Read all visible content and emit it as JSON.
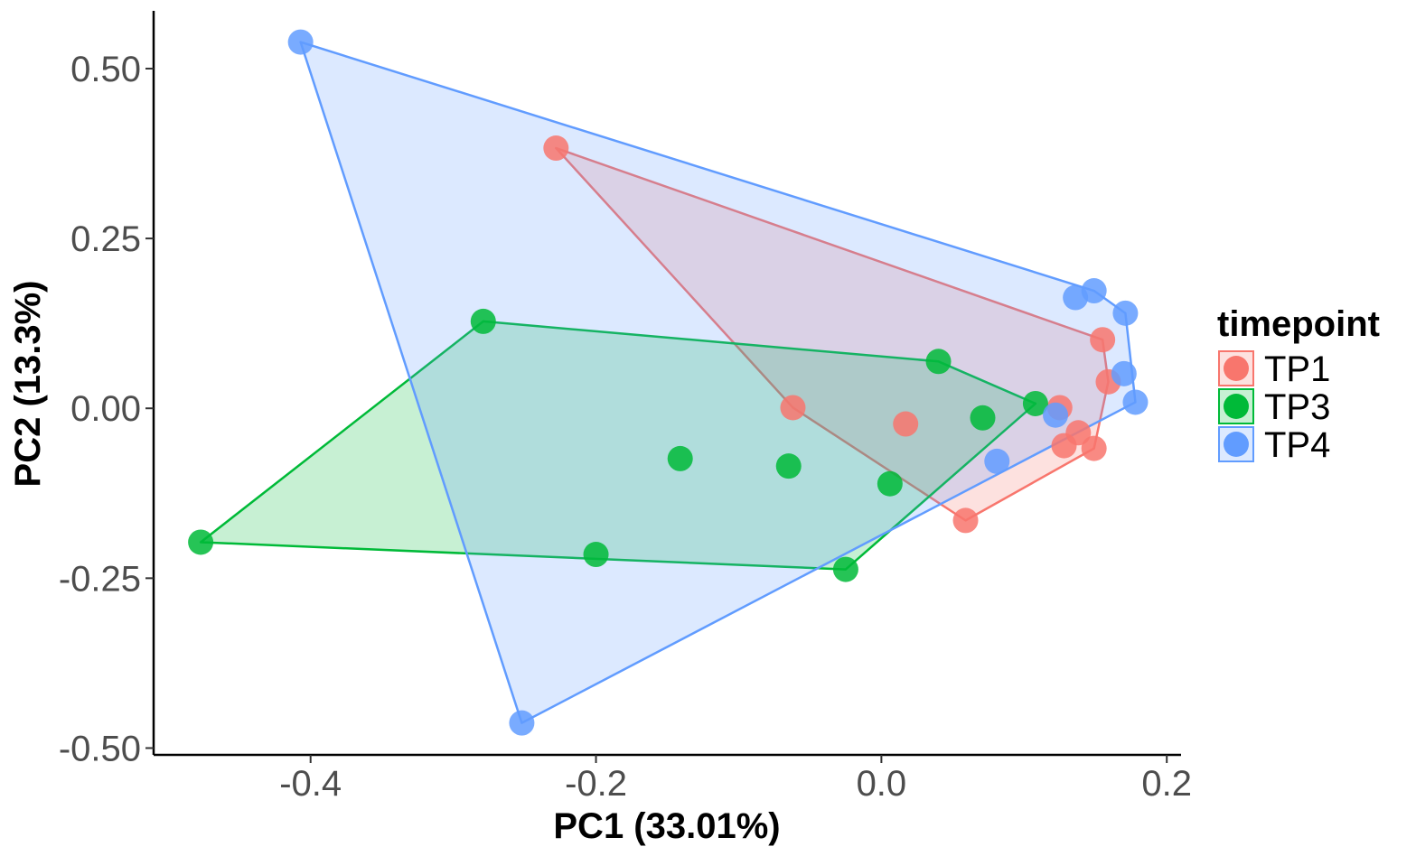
{
  "chart_data": {
    "type": "scatter",
    "xlabel": "PC1 (33.01%)",
    "ylabel": "PC2 (13.3%)",
    "xlim": [
      -0.51,
      0.21
    ],
    "ylim": [
      -0.51,
      0.585
    ],
    "x_ticks": [
      -0.4,
      -0.2,
      0.0,
      0.2
    ],
    "x_tick_labels": [
      "-0.4",
      "-0.2",
      "0.0",
      "0.2"
    ],
    "y_ticks": [
      0.5,
      0.25,
      0.0,
      -0.25,
      -0.5
    ],
    "y_tick_labels": [
      "0.50",
      "0.25",
      "0.00",
      "-0.25",
      "-0.50"
    ],
    "grid": false,
    "hulls": true,
    "legend": {
      "title": "timepoint",
      "position": "right"
    },
    "series": [
      {
        "name": "TP1",
        "color": "#F8766D",
        "hull": [
          [
            -0.228,
            0.383
          ],
          [
            0.155,
            0.101
          ],
          [
            0.159,
            0.039
          ],
          [
            0.149,
            -0.059
          ],
          [
            0.059,
            -0.165
          ],
          [
            -0.062,
            0.001
          ]
        ],
        "points": [
          [
            -0.228,
            0.383
          ],
          [
            -0.062,
            0.001
          ],
          [
            0.017,
            -0.023
          ],
          [
            0.125,
            0.001
          ],
          [
            0.138,
            -0.036
          ],
          [
            0.128,
            -0.055
          ],
          [
            0.149,
            -0.059
          ],
          [
            0.155,
            0.101
          ],
          [
            0.159,
            0.039
          ],
          [
            0.059,
            -0.165
          ]
        ]
      },
      {
        "name": "TP3",
        "color": "#00BA38",
        "hull": [
          [
            -0.279,
            0.128
          ],
          [
            0.04,
            0.069
          ],
          [
            0.108,
            0.007
          ],
          [
            -0.025,
            -0.237
          ],
          [
            -0.477,
            -0.197
          ]
        ],
        "points": [
          [
            -0.477,
            -0.197
          ],
          [
            -0.279,
            0.128
          ],
          [
            -0.2,
            -0.215
          ],
          [
            -0.141,
            -0.074
          ],
          [
            -0.065,
            -0.085
          ],
          [
            -0.025,
            -0.237
          ],
          [
            0.006,
            -0.111
          ],
          [
            0.04,
            0.069
          ],
          [
            0.071,
            -0.014
          ],
          [
            0.108,
            0.007
          ]
        ]
      },
      {
        "name": "TP4",
        "color": "#619CFF",
        "hull": [
          [
            -0.407,
            0.539
          ],
          [
            0.149,
            0.173
          ],
          [
            0.171,
            0.14
          ],
          [
            0.178,
            0.009
          ],
          [
            -0.252,
            -0.463
          ]
        ],
        "points": [
          [
            -0.407,
            0.539
          ],
          [
            -0.252,
            -0.463
          ],
          [
            0.081,
            -0.078
          ],
          [
            0.122,
            -0.01
          ],
          [
            0.136,
            0.163
          ],
          [
            0.149,
            0.173
          ],
          [
            0.171,
            0.14
          ],
          [
            0.17,
            0.051
          ],
          [
            0.178,
            0.009
          ]
        ]
      }
    ]
  }
}
